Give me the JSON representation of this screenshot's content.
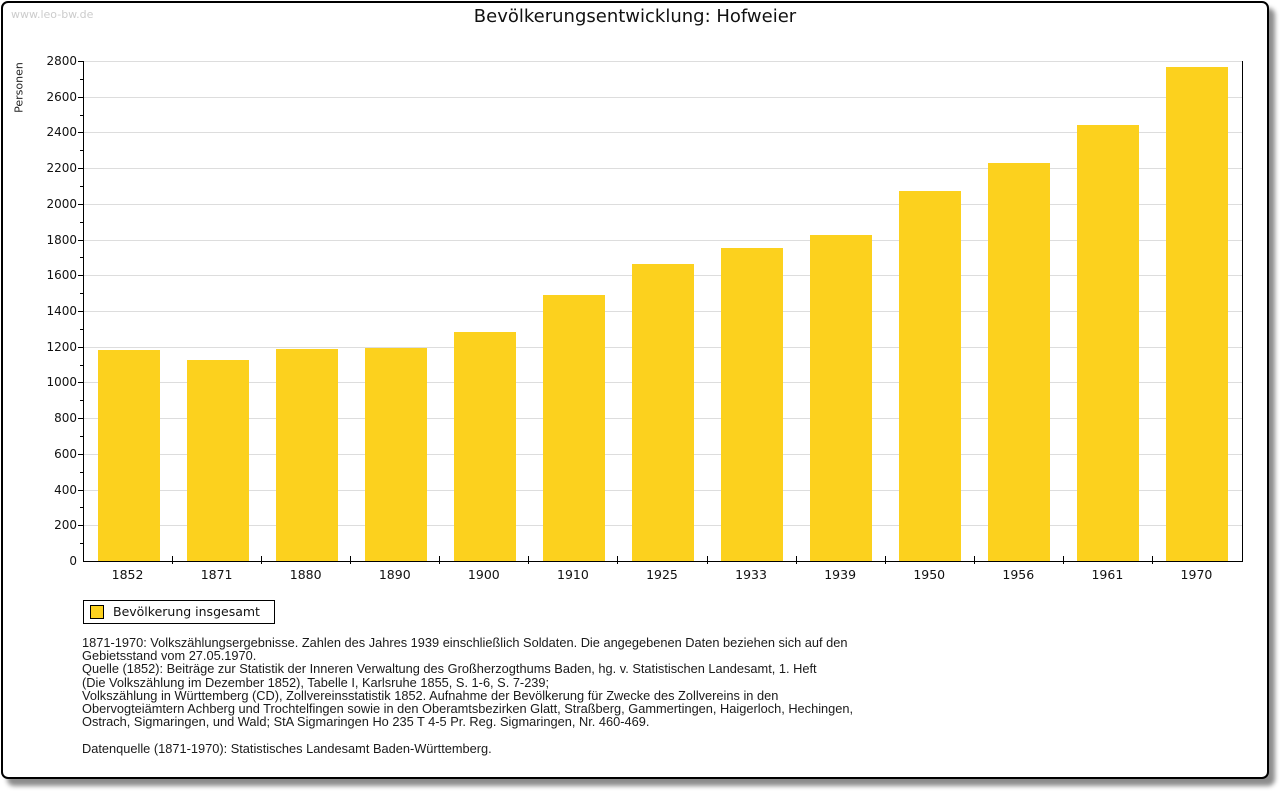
{
  "page": {
    "watermark": "www.leo-bw.de",
    "title": "Bevölkerungsentwicklung: Hofweier"
  },
  "chart_data": {
    "type": "bar",
    "title": "Bevölkerungsentwicklung: Hofweier",
    "xlabel": "",
    "ylabel": "Personen",
    "categories": [
      "1852",
      "1871",
      "1880",
      "1890",
      "1900",
      "1910",
      "1925",
      "1933",
      "1939",
      "1950",
      "1956",
      "1961",
      "1970"
    ],
    "values": [
      1180,
      1125,
      1190,
      1195,
      1285,
      1490,
      1665,
      1755,
      1825,
      2070,
      2230,
      2440,
      2765
    ],
    "ylim": [
      0,
      2800
    ],
    "yticks": [
      0,
      200,
      400,
      600,
      800,
      1000,
      1200,
      1400,
      1600,
      1800,
      2000,
      2200,
      2400,
      2600,
      2800
    ],
    "minor_tick_step": 100,
    "grid": "horizontal-major",
    "bar_color": "#FCD11E",
    "gridline_color": "#dddddd",
    "legend_position": "bottom-left"
  },
  "legend": {
    "label": "Bevölkerung insgesamt"
  },
  "footnotes": {
    "lines": [
      "1871-1970: Volkszählungsergebnisse. Zahlen des Jahres 1939 einschließlich Soldaten. Die angegebenen Daten beziehen sich auf den",
      "Gebietsstand vom 27.05.1970.",
      "Quelle (1852): Beiträge zur Statistik der Inneren Verwaltung des Großherzogthums Baden, hg. v. Statistischen Landesamt, 1. Heft",
      "(Die Volkszählung im Dezember 1852), Tabelle I, Karlsruhe 1855, S. 1-6, S. 7-239;",
      "Volkszählung in Württemberg (CD), Zollvereinsstatistik 1852. Aufnahme der Bevölkerung für Zwecke des Zollvereins in den",
      "Obervogteiämtern Achberg und Trochtelfingen sowie in den Oberamtsbezirken Glatt, Straßberg, Gammertingen, Haigerloch, Hechingen,",
      "Ostrach, Sigmaringen, und Wald; StA Sigmaringen Ho 235 T 4-5 Pr. Reg. Sigmaringen, Nr. 460-469.",
      "",
      "Datenquelle (1871-1970): Statistisches Landesamt Baden-Württemberg."
    ]
  }
}
